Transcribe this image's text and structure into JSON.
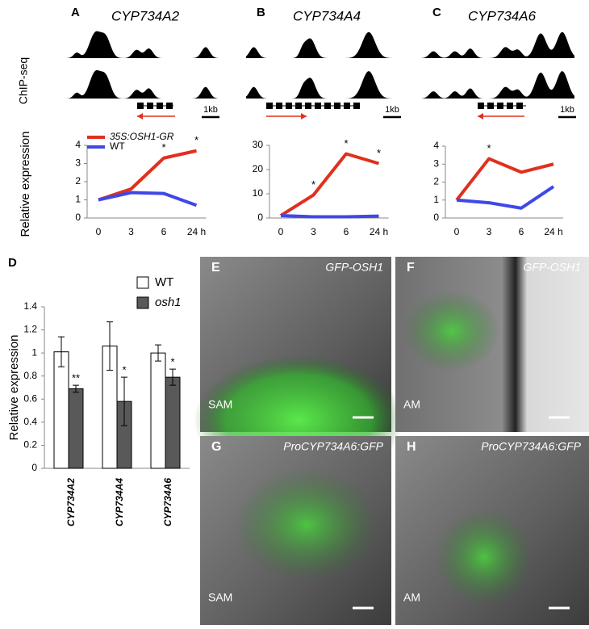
{
  "figure": {
    "chip_label": "ChIP-seq",
    "scale_labels": [
      "1kb",
      "1kb",
      "1kb"
    ]
  },
  "chart_data": [
    {
      "type": "line",
      "panel": "A",
      "title": "CYP734A2",
      "ylabel": "Relative expression",
      "categories": [
        "0",
        "3",
        "6",
        "24 h"
      ],
      "ylim": [
        0,
        4
      ],
      "yticks": [
        0,
        1,
        2,
        3,
        4
      ],
      "series": [
        {
          "name": "35S:OSH1-GR",
          "color": "#e0301e",
          "values": [
            1,
            1.6,
            3.3,
            3.7
          ],
          "significance": [
            null,
            null,
            "*",
            "*"
          ]
        },
        {
          "name": "WT",
          "color": "#3f48e6",
          "values": [
            1,
            1.4,
            1.35,
            0.7
          ]
        }
      ]
    },
    {
      "type": "line",
      "panel": "B",
      "title": "CYP734A4",
      "categories": [
        "0",
        "3",
        "6",
        "24 h"
      ],
      "ylim": [
        0,
        30
      ],
      "yticks": [
        0,
        10,
        20,
        30
      ],
      "series": [
        {
          "color": "#e0301e",
          "values": [
            1,
            9.5,
            26.5,
            22.5
          ],
          "significance": [
            null,
            "*",
            "*",
            "*"
          ]
        },
        {
          "color": "#3f48e6",
          "values": [
            1,
            0.5,
            0.5,
            0.8
          ]
        }
      ]
    },
    {
      "type": "line",
      "panel": "C",
      "title": "CYP734A6",
      "categories": [
        "0",
        "3",
        "6",
        "24 h"
      ],
      "ylim": [
        0,
        4
      ],
      "yticks": [
        0,
        1,
        2,
        3,
        4
      ],
      "series": [
        {
          "color": "#e0301e",
          "values": [
            1,
            3.3,
            2.55,
            3.0
          ],
          "significance": [
            null,
            "*",
            null,
            null
          ]
        },
        {
          "color": "#3f48e6",
          "values": [
            1,
            0.85,
            0.55,
            1.75
          ]
        }
      ]
    },
    {
      "type": "bar",
      "panel": "D",
      "ylabel": "Relative expression",
      "categories": [
        "CYP734A2",
        "CYP734A4",
        "CYP734A6"
      ],
      "ylim": [
        0,
        1.4
      ],
      "yticks": [
        0,
        0.2,
        0.4,
        0.6,
        0.8,
        1,
        1.2,
        1.4
      ],
      "series": [
        {
          "name": "WT",
          "color": "#ffffff",
          "values": [
            1.01,
            1.06,
            1.0
          ],
          "errors": [
            0.13,
            0.21,
            0.07
          ]
        },
        {
          "name": "osh1",
          "color": "#595959",
          "values": [
            0.69,
            0.58,
            0.79
          ],
          "errors": [
            0.03,
            0.21,
            0.07
          ],
          "significance": [
            "**",
            "*",
            "*"
          ]
        }
      ]
    }
  ],
  "images": [
    {
      "panel": "E",
      "label": "GFP-OSH1",
      "region": "SAM"
    },
    {
      "panel": "F",
      "label": "GFP-OSH1",
      "region": "AM"
    },
    {
      "panel": "G",
      "label": "ProCYP734A6:GFP",
      "region": "SAM"
    },
    {
      "panel": "H",
      "label": "ProCYP734A6:GFP",
      "region": "AM"
    }
  ]
}
